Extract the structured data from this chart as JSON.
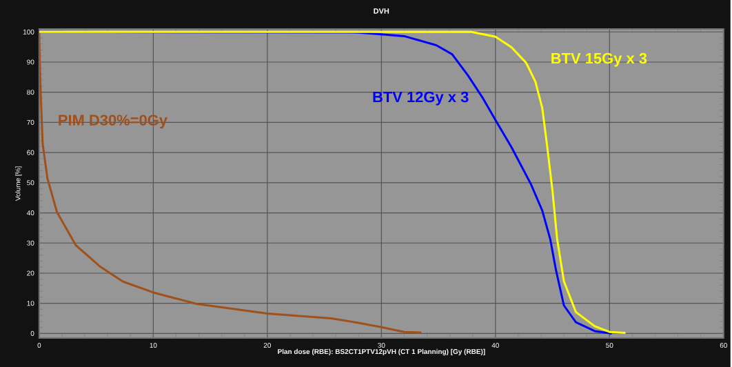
{
  "chart_data": {
    "type": "line",
    "title": "DVH",
    "xlabel": "Plan dose (RBE): BS2CT1PTV12pVH (CT 1 Planning) [Gy (RBE)]",
    "ylabel": "Volume [%]",
    "xlim": [
      0,
      60
    ],
    "ylim": [
      -1.5,
      101
    ],
    "xticks": [
      0,
      10,
      20,
      30,
      40,
      50,
      60
    ],
    "yticks": [
      0,
      10,
      20,
      30,
      40,
      50,
      60,
      70,
      80,
      90,
      100
    ],
    "grid": true,
    "marker": "none",
    "line_style": "solid",
    "series": [
      {
        "name": "PIM D30%=0Gy",
        "color": "#a0501a",
        "x": [
          0,
          0.05,
          0.14,
          0.3,
          0.72,
          1.55,
          3.2,
          5.3,
          7.35,
          10.0,
          13.8,
          20.0,
          25.6,
          27.9,
          30.0,
          32.0,
          33.5
        ],
        "values": [
          100,
          90,
          78.8,
          63,
          51.4,
          40.3,
          29.3,
          22.3,
          17.2,
          13.6,
          9.8,
          6.6,
          5.0,
          3.6,
          2.1,
          0.5,
          0.3
        ]
      },
      {
        "name": "BTV 12Gy x 3",
        "color": "#0000ff",
        "x": [
          0,
          28,
          30,
          32.0,
          34.8,
          36.2,
          37.6,
          38.9,
          40.0,
          41.4,
          43.1,
          44.1,
          44.8,
          45.3,
          46.0,
          47.05,
          48.7,
          50.2
        ],
        "values": [
          100,
          99.8,
          99.2,
          98.6,
          95.6,
          92.6,
          85.5,
          78,
          70.8,
          61.8,
          49.6,
          40.8,
          31.3,
          21.1,
          9.3,
          3.7,
          0.8,
          0
        ]
      },
      {
        "name": "BTV 15Gy x 3",
        "color": "#ffff00",
        "x": [
          0,
          37.9,
          40.0,
          41.4,
          42.7,
          43.5,
          44.1,
          44.5,
          45.0,
          45.4,
          46.0,
          47.05,
          48.7,
          50.0,
          51.4
        ],
        "values": [
          100,
          100,
          98.4,
          94.9,
          89.7,
          83.5,
          74.8,
          63.1,
          47.3,
          31.5,
          17.3,
          7.1,
          2.4,
          0.5,
          0.2
        ]
      }
    ]
  }
}
